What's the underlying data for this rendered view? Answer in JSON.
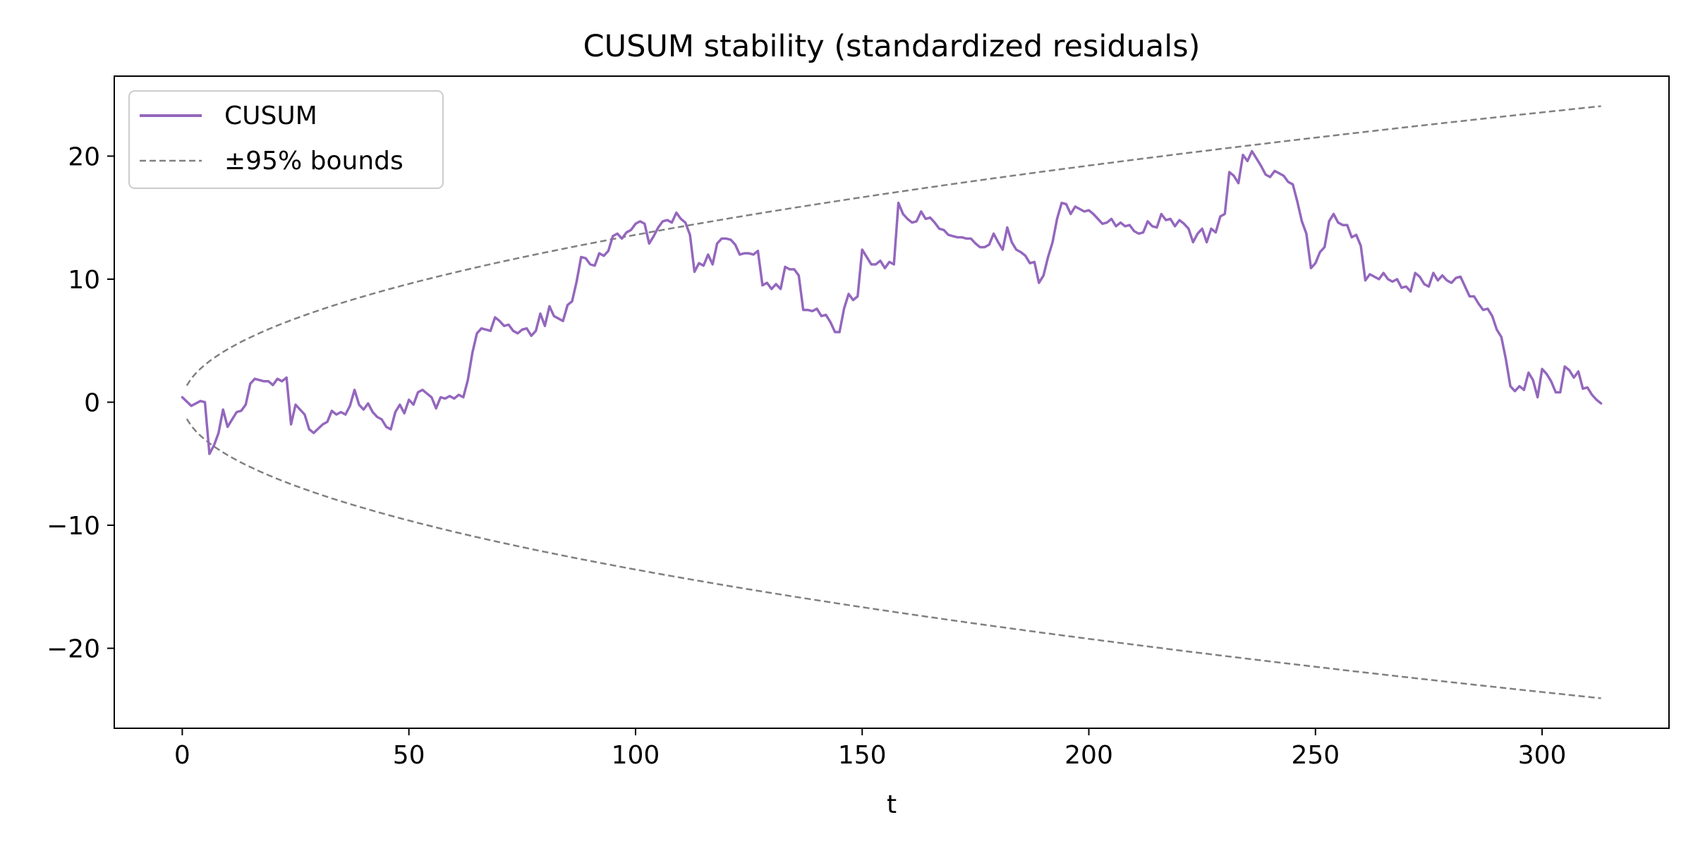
{
  "chart_data": {
    "type": "line",
    "title": "CUSUM stability (standardized residuals)",
    "xlabel": "t",
    "ylabel": "",
    "xlim": [
      -15,
      328
    ],
    "ylim": [
      -26.5,
      26.5
    ],
    "xticks": [
      0,
      50,
      100,
      150,
      200,
      250,
      300
    ],
    "yticks": [
      -20,
      -10,
      0,
      10,
      20
    ],
    "xtick_labels": [
      "0",
      "50",
      "100",
      "150",
      "200",
      "250",
      "300"
    ],
    "ytick_labels": [
      "−20",
      "−10",
      "0",
      "10",
      "20"
    ],
    "grid": false,
    "legend": {
      "location": "upper-left",
      "entries": [
        {
          "label": "CUSUM",
          "style": "solid",
          "color": "#9467bd"
        },
        {
          "label": "±95% bounds",
          "style": "dashed",
          "color": "#808080"
        }
      ]
    },
    "bounds": {
      "name": "±95% bounds",
      "formula": "±1.36*sqrt(t)",
      "coefficient": 1.36,
      "t_range": [
        1,
        313
      ],
      "color": "#808080"
    },
    "series": [
      {
        "name": "CUSUM",
        "color": "#9467bd",
        "points": [
          [
            0,
            0.4
          ],
          [
            2,
            -0.3
          ],
          [
            4,
            0.1
          ],
          [
            5,
            0.0
          ],
          [
            6,
            -4.2
          ],
          [
            7,
            -3.5
          ],
          [
            8,
            -2.5
          ],
          [
            9,
            -0.6
          ],
          [
            10,
            -2.0
          ],
          [
            12,
            -0.8
          ],
          [
            13,
            -0.7
          ],
          [
            14,
            -0.2
          ],
          [
            15,
            1.5
          ],
          [
            16,
            1.9
          ],
          [
            18,
            1.7
          ],
          [
            19,
            1.7
          ],
          [
            20,
            1.4
          ],
          [
            21,
            1.9
          ],
          [
            22,
            1.7
          ],
          [
            23,
            2.0
          ],
          [
            24,
            -1.8
          ],
          [
            25,
            -0.2
          ],
          [
            27,
            -1.0
          ],
          [
            28,
            -2.2
          ],
          [
            29,
            -2.5
          ],
          [
            31,
            -1.8
          ],
          [
            32,
            -1.6
          ],
          [
            33,
            -0.7
          ],
          [
            34,
            -1.0
          ],
          [
            35,
            -0.8
          ],
          [
            36,
            -1.0
          ],
          [
            37,
            -0.3
          ],
          [
            38,
            1.0
          ],
          [
            39,
            -0.2
          ],
          [
            40,
            -0.6
          ],
          [
            41,
            -0.1
          ],
          [
            42,
            -0.8
          ],
          [
            43,
            -1.2
          ],
          [
            44,
            -1.4
          ],
          [
            45,
            -2.0
          ],
          [
            46,
            -2.2
          ],
          [
            47,
            -0.8
          ],
          [
            48,
            -0.2
          ],
          [
            49,
            -0.9
          ],
          [
            50,
            0.2
          ],
          [
            51,
            -0.2
          ],
          [
            52,
            0.8
          ],
          [
            53,
            1.0
          ],
          [
            54,
            0.7
          ],
          [
            55,
            0.4
          ],
          [
            56,
            -0.5
          ],
          [
            57,
            0.4
          ],
          [
            58,
            0.3
          ],
          [
            59,
            0.5
          ],
          [
            60,
            0.3
          ],
          [
            61,
            0.6
          ],
          [
            62,
            0.4
          ],
          [
            63,
            1.8
          ],
          [
            64,
            4.0
          ],
          [
            65,
            5.6
          ],
          [
            66,
            6.0
          ],
          [
            68,
            5.8
          ],
          [
            69,
            6.9
          ],
          [
            70,
            6.6
          ],
          [
            71,
            6.2
          ],
          [
            72,
            6.3
          ],
          [
            73,
            5.8
          ],
          [
            74,
            5.6
          ],
          [
            75,
            5.9
          ],
          [
            76,
            6.0
          ],
          [
            77,
            5.4
          ],
          [
            78,
            5.8
          ],
          [
            79,
            7.2
          ],
          [
            80,
            6.2
          ],
          [
            81,
            7.8
          ],
          [
            82,
            7.0
          ],
          [
            83,
            6.8
          ],
          [
            84,
            6.6
          ],
          [
            85,
            7.9
          ],
          [
            86,
            8.2
          ],
          [
            87,
            9.8
          ],
          [
            88,
            11.8
          ],
          [
            89,
            11.7
          ],
          [
            90,
            11.2
          ],
          [
            91,
            11.1
          ],
          [
            92,
            12.1
          ],
          [
            93,
            11.9
          ],
          [
            94,
            12.3
          ],
          [
            95,
            13.5
          ],
          [
            96,
            13.7
          ],
          [
            97,
            13.3
          ],
          [
            98,
            13.8
          ],
          [
            99,
            14.0
          ],
          [
            100,
            14.5
          ],
          [
            101,
            14.7
          ],
          [
            102,
            14.5
          ],
          [
            103,
            12.9
          ],
          [
            104,
            13.5
          ],
          [
            105,
            14.2
          ],
          [
            106,
            14.7
          ],
          [
            107,
            14.8
          ],
          [
            108,
            14.6
          ],
          [
            109,
            15.4
          ],
          [
            110,
            14.9
          ],
          [
            111,
            14.6
          ],
          [
            112,
            13.6
          ],
          [
            113,
            10.6
          ],
          [
            114,
            11.3
          ],
          [
            115,
            11.1
          ],
          [
            116,
            12.0
          ],
          [
            117,
            11.2
          ],
          [
            118,
            12.9
          ],
          [
            119,
            13.3
          ],
          [
            120,
            13.3
          ],
          [
            121,
            13.2
          ],
          [
            122,
            12.8
          ],
          [
            123,
            12.0
          ],
          [
            124,
            12.1
          ],
          [
            125,
            12.1
          ],
          [
            126,
            12.0
          ],
          [
            127,
            12.3
          ],
          [
            128,
            9.5
          ],
          [
            129,
            9.7
          ],
          [
            130,
            9.2
          ],
          [
            131,
            9.6
          ],
          [
            132,
            9.2
          ],
          [
            133,
            11.0
          ],
          [
            134,
            10.8
          ],
          [
            135,
            10.8
          ],
          [
            136,
            10.3
          ],
          [
            137,
            7.5
          ],
          [
            138,
            7.5
          ],
          [
            139,
            7.4
          ],
          [
            140,
            7.6
          ],
          [
            141,
            7.0
          ],
          [
            142,
            7.1
          ],
          [
            143,
            6.5
          ],
          [
            144,
            5.7
          ],
          [
            145,
            5.7
          ],
          [
            146,
            7.6
          ],
          [
            147,
            8.8
          ],
          [
            148,
            8.3
          ],
          [
            149,
            8.6
          ],
          [
            150,
            12.4
          ],
          [
            151,
            11.8
          ],
          [
            152,
            11.2
          ],
          [
            153,
            11.2
          ],
          [
            154,
            11.5
          ],
          [
            155,
            10.9
          ],
          [
            156,
            11.4
          ],
          [
            157,
            11.2
          ],
          [
            158,
            16.2
          ],
          [
            159,
            15.3
          ],
          [
            160,
            14.9
          ],
          [
            161,
            14.6
          ],
          [
            162,
            14.7
          ],
          [
            163,
            15.5
          ],
          [
            164,
            14.9
          ],
          [
            165,
            15.0
          ],
          [
            166,
            14.6
          ],
          [
            167,
            14.1
          ],
          [
            168,
            14.0
          ],
          [
            169,
            13.6
          ],
          [
            170,
            13.5
          ],
          [
            171,
            13.4
          ],
          [
            172,
            13.4
          ],
          [
            173,
            13.3
          ],
          [
            174,
            13.3
          ],
          [
            175,
            12.9
          ],
          [
            176,
            12.6
          ],
          [
            177,
            12.6
          ],
          [
            178,
            12.8
          ],
          [
            179,
            13.7
          ],
          [
            180,
            13.0
          ],
          [
            181,
            12.4
          ],
          [
            182,
            14.2
          ],
          [
            183,
            13.0
          ],
          [
            184,
            12.4
          ],
          [
            185,
            12.2
          ],
          [
            186,
            11.9
          ],
          [
            187,
            11.3
          ],
          [
            188,
            11.4
          ],
          [
            189,
            9.7
          ],
          [
            190,
            10.3
          ],
          [
            191,
            11.8
          ],
          [
            192,
            13.0
          ],
          [
            193,
            14.9
          ],
          [
            194,
            16.2
          ],
          [
            195,
            16.1
          ],
          [
            196,
            15.3
          ],
          [
            197,
            15.9
          ],
          [
            198,
            15.7
          ],
          [
            199,
            15.5
          ],
          [
            200,
            15.6
          ],
          [
            201,
            15.3
          ],
          [
            202,
            14.9
          ],
          [
            203,
            14.5
          ],
          [
            204,
            14.6
          ],
          [
            205,
            14.9
          ],
          [
            206,
            14.3
          ],
          [
            207,
            14.6
          ],
          [
            208,
            14.3
          ],
          [
            209,
            14.4
          ],
          [
            210,
            13.9
          ],
          [
            211,
            13.7
          ],
          [
            212,
            13.8
          ],
          [
            213,
            14.7
          ],
          [
            214,
            14.3
          ],
          [
            215,
            14.2
          ],
          [
            216,
            15.3
          ],
          [
            217,
            14.8
          ],
          [
            218,
            14.9
          ],
          [
            219,
            14.3
          ],
          [
            220,
            14.8
          ],
          [
            221,
            14.5
          ],
          [
            222,
            14.1
          ],
          [
            223,
            13.0
          ],
          [
            224,
            13.7
          ],
          [
            225,
            14.1
          ],
          [
            226,
            13.0
          ],
          [
            227,
            14.1
          ],
          [
            228,
            13.8
          ],
          [
            229,
            15.1
          ],
          [
            230,
            15.3
          ],
          [
            231,
            18.7
          ],
          [
            232,
            18.4
          ],
          [
            233,
            17.8
          ],
          [
            234,
            20.1
          ],
          [
            235,
            19.6
          ],
          [
            236,
            20.4
          ],
          [
            237,
            19.8
          ],
          [
            238,
            19.2
          ],
          [
            239,
            18.5
          ],
          [
            240,
            18.3
          ],
          [
            241,
            18.8
          ],
          [
            242,
            18.6
          ],
          [
            243,
            18.4
          ],
          [
            244,
            17.9
          ],
          [
            245,
            17.7
          ],
          [
            246,
            16.3
          ],
          [
            247,
            14.7
          ],
          [
            248,
            13.7
          ],
          [
            249,
            10.9
          ],
          [
            250,
            11.3
          ],
          [
            251,
            12.2
          ],
          [
            252,
            12.6
          ],
          [
            253,
            14.7
          ],
          [
            254,
            15.3
          ],
          [
            255,
            14.6
          ],
          [
            256,
            14.4
          ],
          [
            257,
            14.4
          ],
          [
            258,
            13.4
          ],
          [
            259,
            13.6
          ],
          [
            260,
            12.7
          ],
          [
            261,
            9.9
          ],
          [
            262,
            10.4
          ],
          [
            263,
            10.2
          ],
          [
            264,
            10.0
          ],
          [
            265,
            10.5
          ],
          [
            266,
            10.0
          ],
          [
            267,
            9.8
          ],
          [
            268,
            10.0
          ],
          [
            269,
            9.3
          ],
          [
            270,
            9.4
          ],
          [
            271,
            9.0
          ],
          [
            272,
            10.5
          ],
          [
            273,
            10.2
          ],
          [
            274,
            9.6
          ],
          [
            275,
            9.4
          ],
          [
            276,
            10.5
          ],
          [
            277,
            9.9
          ],
          [
            278,
            10.3
          ],
          [
            279,
            9.9
          ],
          [
            280,
            9.7
          ],
          [
            281,
            10.1
          ],
          [
            282,
            10.2
          ],
          [
            283,
            9.4
          ],
          [
            284,
            8.6
          ],
          [
            285,
            8.6
          ],
          [
            286,
            8.0
          ],
          [
            287,
            7.5
          ],
          [
            288,
            7.6
          ],
          [
            289,
            7.0
          ],
          [
            290,
            5.9
          ],
          [
            291,
            5.3
          ],
          [
            292,
            3.5
          ],
          [
            293,
            1.3
          ],
          [
            294,
            0.9
          ],
          [
            295,
            1.3
          ],
          [
            296,
            1.0
          ],
          [
            297,
            2.4
          ],
          [
            298,
            1.8
          ],
          [
            299,
            0.4
          ],
          [
            300,
            2.7
          ],
          [
            301,
            2.3
          ],
          [
            302,
            1.7
          ],
          [
            303,
            0.8
          ],
          [
            304,
            0.8
          ],
          [
            305,
            2.9
          ],
          [
            306,
            2.6
          ],
          [
            307,
            2.0
          ],
          [
            308,
            2.5
          ],
          [
            309,
            1.1
          ],
          [
            310,
            1.2
          ],
          [
            311,
            0.6
          ],
          [
            312,
            0.2
          ],
          [
            313,
            -0.1
          ]
        ]
      }
    ]
  }
}
